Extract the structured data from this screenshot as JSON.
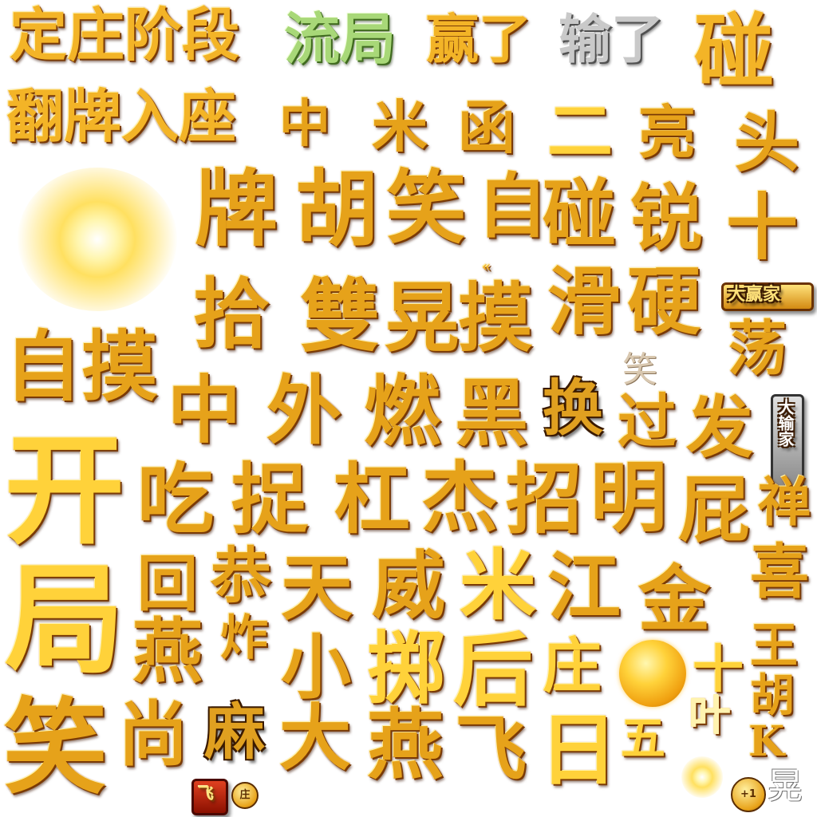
{
  "row1": {
    "dingzhuang": "定庄阶段",
    "liuju": "流局",
    "yingle": "赢了",
    "shule": "输了",
    "peng_big": "碰"
  },
  "row2": {
    "fanpai": "翻牌入座",
    "c1": "中",
    "c2": "米",
    "c3": "函",
    "c4": "二",
    "c5": "亮",
    "c6": "头"
  },
  "row3": {
    "c1": "牌",
    "c2": "胡",
    "c3": "笑",
    "c4": "自",
    "c5": "碰",
    "c6": "锐",
    "c7": "十"
  },
  "row4": {
    "arrows": "«",
    "c1": "拾",
    "c2": "雙",
    "c3": "晃",
    "c4": "摸",
    "c5": "滑",
    "c6": "硬",
    "dayingjia": "大赢家",
    "c7": "荡"
  },
  "row5": {
    "zimo": "自摸",
    "xiao_small": "笑",
    "c1": "中",
    "c2": "外",
    "c3": "燃",
    "c4": "黑",
    "c5": "换",
    "c6": "过",
    "c7": "发",
    "dashujia": "大输家"
  },
  "row6": {
    "kai": "开",
    "c1": "吃",
    "c2": "捉",
    "c3": "杠",
    "c4": "杰",
    "c5": "招",
    "c6": "明",
    "c7": "屁",
    "c8": "禅"
  },
  "row7": {
    "ju": "局",
    "c1": "回",
    "c2": "恭",
    "c3": "天",
    "c4": "威",
    "c5": "米",
    "c6": "江",
    "c7": "金",
    "c8": "喜"
  },
  "row8": {
    "c1": "燕",
    "c2": "炸",
    "c3": "小",
    "c4": "掷",
    "c5": "后",
    "c6": "庄",
    "c7": "十",
    "c8": "王",
    "c9": "胡"
  },
  "row9": {
    "xiao": "笑",
    "c1": "尚",
    "c2": "麻",
    "c3": "大",
    "c4": "燕",
    "c5": "飞",
    "c6": "日",
    "c7": "五",
    "c8": "叶",
    "c9": "K"
  },
  "misc": {
    "flag": "飞",
    "zhuang_badge": "庄",
    "plus_one": "+1",
    "huang": "晃"
  }
}
